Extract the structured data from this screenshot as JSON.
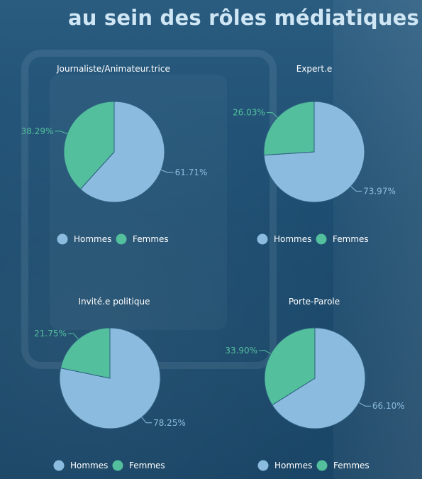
{
  "header": {
    "title": "au sein des rôles médiatiques"
  },
  "colors": {
    "hommes": "#8bbcdf",
    "femmes": "#53bf9d",
    "background": "#1d4e70"
  },
  "chart_data": [
    {
      "type": "pie",
      "title": "Journaliste/Animateur.trice",
      "categories": [
        "Hommes",
        "Femmes"
      ],
      "values": [
        61.71,
        38.29
      ],
      "labels": [
        "61.71%",
        "38.29%"
      ],
      "legend": [
        "Hommes",
        "Femmes"
      ],
      "legend_position": "bottom"
    },
    {
      "type": "pie",
      "title": "Expert.e",
      "categories": [
        "Hommes",
        "Femmes"
      ],
      "values": [
        73.97,
        26.03
      ],
      "labels": [
        "73.97%",
        "26.03%"
      ],
      "legend": [
        "Hommes",
        "Femmes"
      ],
      "legend_position": "bottom"
    },
    {
      "type": "pie",
      "title": "Invité.e politique",
      "categories": [
        "Hommes",
        "Femmes"
      ],
      "values": [
        78.25,
        21.75
      ],
      "labels": [
        "78.25%",
        "21.75%"
      ],
      "legend": [
        "Hommes",
        "Femmes"
      ],
      "legend_position": "bottom"
    },
    {
      "type": "pie",
      "title": "Porte-Parole",
      "categories": [
        "Hommes",
        "Femmes"
      ],
      "values": [
        66.1,
        33.9
      ],
      "labels": [
        "66.10%",
        "33.90%"
      ],
      "legend": [
        "Hommes",
        "Femmes"
      ],
      "legend_position": "bottom"
    }
  ]
}
